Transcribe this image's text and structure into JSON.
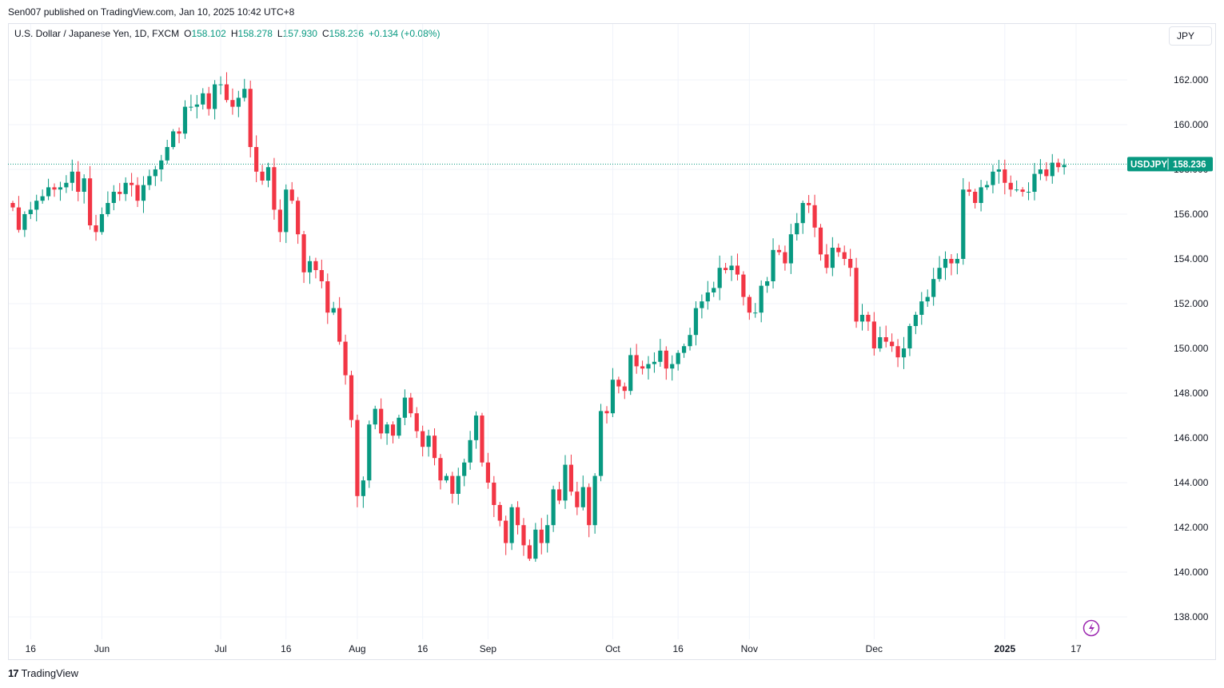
{
  "published_line": "Sen007 published on TradingView.com, Jan 10, 2025 10:42 UTC+8",
  "legend": {
    "symbol": "U.S. Dollar / Japanese Yen, 1D, FXCM",
    "o_label": "O",
    "o_value": "158.102",
    "h_label": "H",
    "h_value": "158.278",
    "l_label": "L",
    "l_value": "157.930",
    "c_label": "C",
    "c_value": "158.236",
    "change": "+0.134 (+0.08%)"
  },
  "currency_unit": "JPY",
  "price_tag": {
    "symbol": "USDJPY",
    "price": "158.236"
  },
  "brand": {
    "logo": "17",
    "name": "TradingView"
  },
  "colors": {
    "up": "#089981",
    "down": "#f23645",
    "grid": "#f0f3fa",
    "text": "#131722"
  },
  "chart_data": {
    "type": "candlestick",
    "title": "U.S. Dollar / Japanese Yen, 1D, FXCM",
    "ylim": [
      137,
      164.5
    ],
    "y_ticks": [
      "138.000",
      "140.000",
      "142.000",
      "144.000",
      "146.000",
      "148.000",
      "150.000",
      "152.000",
      "154.000",
      "156.000",
      "158.000",
      "160.000",
      "162.000"
    ],
    "x_ticks": [
      {
        "label": "16",
        "date": "2024-05-16"
      },
      {
        "label": "Jun",
        "date": "2024-06-03"
      },
      {
        "label": "Jul",
        "date": "2024-07-01"
      },
      {
        "label": "16",
        "date": "2024-07-16"
      },
      {
        "label": "Aug",
        "date": "2024-08-01"
      },
      {
        "label": "16",
        "date": "2024-08-16"
      },
      {
        "label": "Sep",
        "date": "2024-09-02"
      },
      {
        "label": "Oct",
        "date": "2024-10-01"
      },
      {
        "label": "16",
        "date": "2024-10-16"
      },
      {
        "label": "Nov",
        "date": "2024-11-01"
      },
      {
        "label": "Dec",
        "date": "2024-12-02"
      },
      {
        "label": "2025",
        "date": "2025-01-01"
      },
      {
        "label": "17",
        "date": "2025-01-17"
      }
    ],
    "last_price": 158.236,
    "closes": [
      156.3,
      155.3,
      156.0,
      156.2,
      156.6,
      156.8,
      157.2,
      157.1,
      157.2,
      157.4,
      157.9,
      157.0,
      157.6,
      155.5,
      155.2,
      156.0,
      156.5,
      157.0,
      156.9,
      157.4,
      157.3,
      156.6,
      157.3,
      157.7,
      158.0,
      158.4,
      159.0,
      159.7,
      159.6,
      160.8,
      160.8,
      160.9,
      161.4,
      160.7,
      161.8,
      161.8,
      161.1,
      160.8,
      161.2,
      161.6,
      159.0,
      157.9,
      157.5,
      158.1,
      156.2,
      155.2,
      157.1,
      156.6,
      155.1,
      153.4,
      153.9,
      153.5,
      153.0,
      151.6,
      151.8,
      150.3,
      148.8,
      146.8,
      143.4,
      144.1,
      146.6,
      147.3,
      146.2,
      146.6,
      146.1,
      146.9,
      147.8,
      147.1,
      146.3,
      145.6,
      146.1,
      145.1,
      144.1,
      144.3,
      143.5,
      144.3,
      144.9,
      145.9,
      147.0,
      144.9,
      144.0,
      143.0,
      142.3,
      141.3,
      142.9,
      142.1,
      141.2,
      140.6,
      141.9,
      141.3,
      142.1,
      143.7,
      143.2,
      144.8,
      143.6,
      142.9,
      143.8,
      142.1,
      144.3,
      147.2,
      147.1,
      148.6,
      148.3,
      148.1,
      149.7,
      149.2,
      149.1,
      149.3,
      149.4,
      149.9,
      149.1,
      149.3,
      149.8,
      150.1,
      150.6,
      151.8,
      152.1,
      152.5,
      152.7,
      153.6,
      153.5,
      153.7,
      153.3,
      152.3,
      151.6,
      151.6,
      152.8,
      153.0,
      154.4,
      154.3,
      153.8,
      155.1,
      155.6,
      156.5,
      156.4,
      155.4,
      154.2,
      153.6,
      154.5,
      154.3,
      154.0,
      153.6,
      151.2,
      151.5,
      151.2,
      150.0,
      150.5,
      150.3,
      150.1,
      149.6,
      150.0,
      151.0,
      151.5,
      152.1,
      152.3,
      153.1,
      153.6,
      154.0,
      153.8,
      154.0,
      157.1,
      157.0,
      156.5,
      157.2,
      157.3,
      157.9,
      158.0,
      157.4,
      157.1,
      157.1,
      157.0,
      157.0,
      157.8,
      158.0,
      157.7,
      158.3,
      158.1,
      158.2
    ]
  }
}
